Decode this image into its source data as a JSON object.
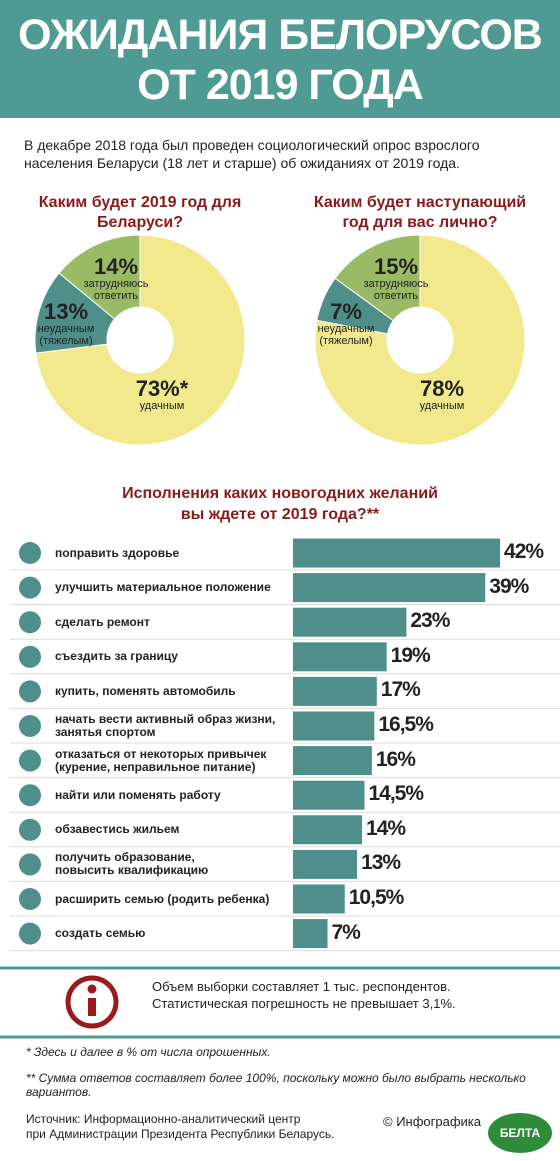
{
  "header": {
    "title": "ОЖИДАНИЯ БЕЛОРУСОВ\nОТ 2019 ГОДА"
  },
  "intro": "В декабре 2018 года был проведен социологический опрос взрослого населения Беларуси (18 лет и старше) об ожиданиях от 2019 года.",
  "chart_data": [
    {
      "type": "pie",
      "donut": true,
      "title": "Каким будет 2019 год для\nБеларуси?",
      "categories": [
        "удачным",
        "неудачным\n(тяжелым)",
        "затрудняюсь\nответить"
      ],
      "values": [
        73,
        13,
        14
      ],
      "value_labels": [
        "73%*",
        "13%",
        "14%"
      ],
      "colors": [
        "#f2e98c",
        "#4f8f8a",
        "#9bba66"
      ]
    },
    {
      "type": "pie",
      "donut": true,
      "title": "Каким будет наступающий\nгод для вас лично?",
      "categories": [
        "удачным",
        "неудачным\n(тяжелым)",
        "затрудняюсь\nответить"
      ],
      "values": [
        78,
        7,
        15
      ],
      "value_labels": [
        "78%",
        "7%",
        "15%"
      ],
      "colors": [
        "#f2e98c",
        "#4f8f8a",
        "#9bba66"
      ]
    },
    {
      "type": "bar",
      "orientation": "horizontal",
      "title": "Исполнения каких новогодних желаний\nвы ждете от 2019 года?**",
      "categories": [
        "поправить здоровье",
        "улучшить материальное положение",
        "сделать ремонт",
        "съездить за границу",
        "купить, поменять автомобиль",
        "начать вести активный образ жизни,\nзанятья спортом",
        "отказаться от некоторых привычек\n(курение, неправильное питание)",
        "найти или поменять работу",
        "обзавестись жильем",
        "получить образование,\nповысить квалификацию",
        "расширить семью (родить ребенка)",
        "создать семью"
      ],
      "values": [
        42,
        39,
        23,
        19,
        17,
        16.5,
        16,
        14.5,
        14,
        13,
        10.5,
        7
      ],
      "value_labels": [
        "42%",
        "39%",
        "23%",
        "19%",
        "17%",
        "16,5%",
        "16%",
        "14,5%",
        "14%",
        "13%",
        "10,5%",
        "7%"
      ],
      "color": "#4e8f8b"
    }
  ],
  "info": "Объем выборки составляет 1 тыс. респондентов.\nСтатистическая погрешность не превышает 3,1%.",
  "footnotes": [
    "* Здесь и далее в % от числа опрошенных.",
    "** Сумма ответов составляет более 100%, поскольку можно было выбрать несколько вариантов."
  ],
  "source": "Источник: Информационно-аналитический центр\nпри Администрации Президента Республики Беларусь.",
  "credit": "© Инфографика",
  "logo": "БЕЛТА"
}
